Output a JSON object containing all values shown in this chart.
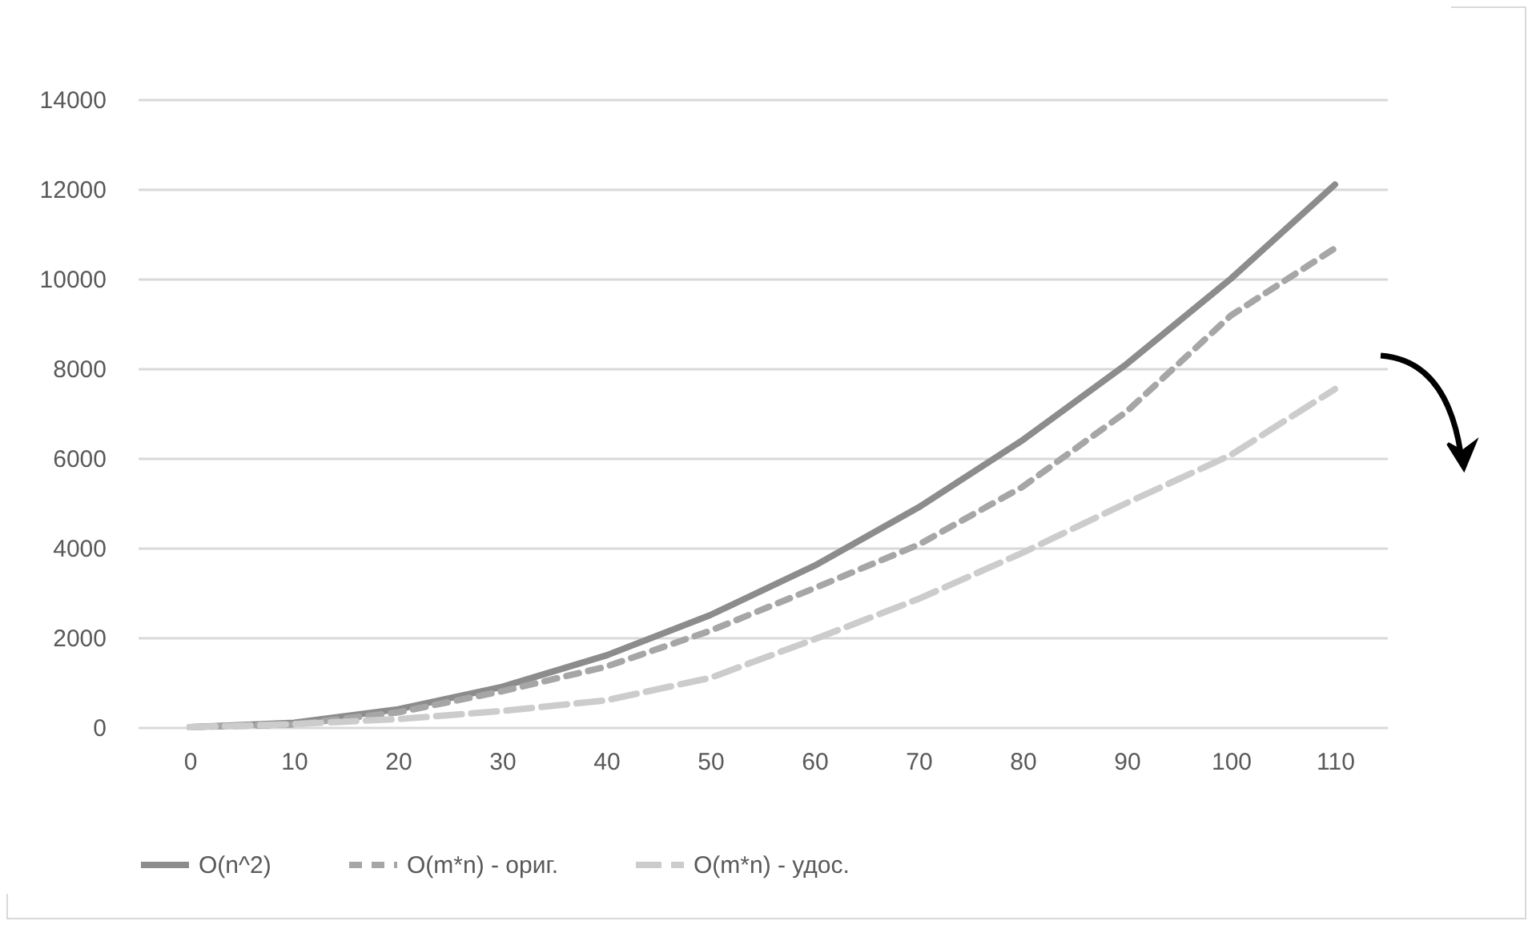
{
  "chart_data": {
    "type": "line",
    "categories": [
      "0",
      "10",
      "20",
      "30",
      "40",
      "50",
      "60",
      "70",
      "80",
      "90",
      "100",
      "110"
    ],
    "series": [
      {
        "name": "O(n^2)",
        "color": "#8c8c8c",
        "line_style": "solid",
        "values": [
          0,
          100,
          400,
          900,
          1600,
          2500,
          3600,
          4900,
          6400,
          8100,
          10000,
          12100
        ]
      },
      {
        "name": "O(m*n) - ориг.",
        "color": "#a6a6a6",
        "line_style": "dashed",
        "values": [
          0,
          60,
          330,
          800,
          1350,
          2150,
          3100,
          4070,
          5360,
          7040,
          9180,
          10680
        ]
      },
      {
        "name": "O(m*n) - удос.",
        "color": "#cccccc",
        "line_style": "dashed",
        "values": [
          0,
          70,
          180,
          360,
          600,
          1100,
          1960,
          2860,
          3890,
          5000,
          6070,
          7540
        ]
      }
    ],
    "ylim": [
      0,
      14000
    ],
    "yticks": [
      0,
      2000,
      4000,
      6000,
      8000,
      10000,
      12000,
      14000
    ],
    "grid": "y",
    "legend": "bottom",
    "marker": "none"
  }
}
